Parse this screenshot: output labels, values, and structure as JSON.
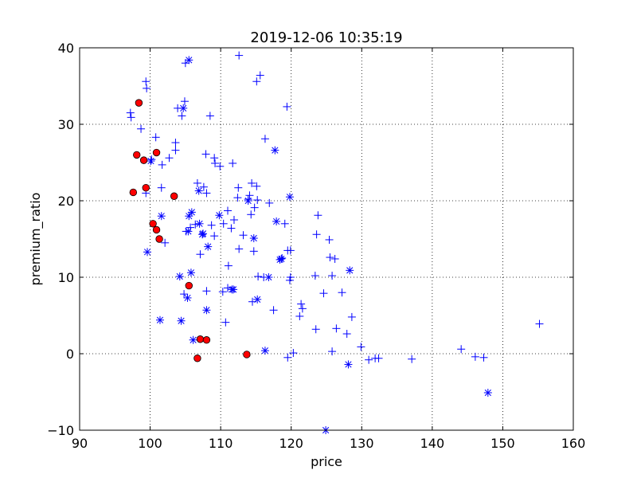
{
  "chart_data": {
    "type": "scatter",
    "title": "2019-12-06 10:35:19",
    "xlabel": "price",
    "ylabel": "premium_ratio",
    "xlim": [
      90,
      160
    ],
    "ylim": [
      -10,
      40
    ],
    "xticks": [
      90,
      100,
      110,
      120,
      130,
      140,
      150,
      160
    ],
    "yticks": [
      -10,
      0,
      10,
      20,
      30,
      40
    ],
    "xtick_labels": [
      "90",
      "100",
      "110",
      "120",
      "130",
      "140",
      "150",
      "160"
    ],
    "ytick_labels": [
      "−10",
      "0",
      "10",
      "20",
      "30",
      "40"
    ],
    "grid": true,
    "legend": "none",
    "colors": {
      "plus": "#0000ff",
      "star": "#0000ff",
      "circle_fill": "#ff0000",
      "circle_edge": "#000000",
      "grid": "#000000",
      "axes": "#000000"
    },
    "series": [
      {
        "marker": "plus",
        "points": [
          [
            97.2,
            31.5
          ],
          [
            97.3,
            30.9
          ],
          [
            98.7,
            29.4
          ],
          [
            99.4,
            35.6
          ],
          [
            99.5,
            34.7
          ],
          [
            99.4,
            21.0
          ],
          [
            100.2,
            25.4
          ],
          [
            100.8,
            28.3
          ],
          [
            101.7,
            24.7
          ],
          [
            101.6,
            21.7
          ],
          [
            102.7,
            25.6
          ],
          [
            102.1,
            14.5
          ],
          [
            103.6,
            27.6
          ],
          [
            103.6,
            26.6
          ],
          [
            103.9,
            32.1
          ],
          [
            104.5,
            31.1
          ],
          [
            104.9,
            33.0
          ],
          [
            105.0,
            38.0
          ],
          [
            105.7,
            16.5
          ],
          [
            105.1,
            16.0
          ],
          [
            104.8,
            7.8
          ],
          [
            106.4,
            16.9
          ],
          [
            106.7,
            22.3
          ],
          [
            107.6,
            21.8
          ],
          [
            107.9,
            26.1
          ],
          [
            108.0,
            21.0
          ],
          [
            108.5,
            31.1
          ],
          [
            108.7,
            16.8
          ],
          [
            109.1,
            25.6
          ],
          [
            109.2,
            24.9
          ],
          [
            109.1,
            15.4
          ],
          [
            108.0,
            8.2
          ],
          [
            107.1,
            13.0
          ],
          [
            109.9,
            24.5
          ],
          [
            110.3,
            8.1
          ],
          [
            110.4,
            17.0
          ],
          [
            110.7,
            4.1
          ],
          [
            111.0,
            18.7
          ],
          [
            111.1,
            11.5
          ],
          [
            111.0,
            8.6
          ],
          [
            111.5,
            16.4
          ],
          [
            111.7,
            24.9
          ],
          [
            111.9,
            17.5
          ],
          [
            112.5,
            21.7
          ],
          [
            112.4,
            20.4
          ],
          [
            112.6,
            13.7
          ],
          [
            112.6,
            39.0
          ],
          [
            113.2,
            15.5
          ],
          [
            113.9,
            20.2
          ],
          [
            114.1,
            20.7
          ],
          [
            114.3,
            18.2
          ],
          [
            114.4,
            22.3
          ],
          [
            114.8,
            19.1
          ],
          [
            114.7,
            13.4
          ],
          [
            114.5,
            6.8
          ],
          [
            115.1,
            35.6
          ],
          [
            115.1,
            21.9
          ],
          [
            115.2,
            20.1
          ],
          [
            115.6,
            36.4
          ],
          [
            115.3,
            10.1
          ],
          [
            116.1,
            10.0
          ],
          [
            116.3,
            28.1
          ],
          [
            116.9,
            19.7
          ],
          [
            117.5,
            5.7
          ],
          [
            118.7,
            12.5
          ],
          [
            119.1,
            17.0
          ],
          [
            119.4,
            32.3
          ],
          [
            119.5,
            13.5
          ],
          [
            119.9,
            13.5
          ],
          [
            119.8,
            9.6
          ],
          [
            119.9,
            10.0
          ],
          [
            119.5,
            -0.5
          ],
          [
            120.3,
            0.1
          ],
          [
            121.2,
            4.9
          ],
          [
            121.4,
            6.5
          ],
          [
            121.6,
            5.9
          ],
          [
            123.4,
            10.2
          ],
          [
            123.5,
            3.2
          ],
          [
            123.6,
            15.6
          ],
          [
            123.8,
            18.1
          ],
          [
            124.6,
            7.9
          ],
          [
            125.4,
            14.9
          ],
          [
            125.5,
            12.6
          ],
          [
            125.8,
            10.2
          ],
          [
            125.8,
            0.3
          ],
          [
            126.2,
            12.4
          ],
          [
            126.4,
            3.3
          ],
          [
            127.2,
            8.0
          ],
          [
            127.9,
            2.6
          ],
          [
            128.6,
            4.8
          ],
          [
            129.9,
            0.9
          ],
          [
            131.0,
            -0.8
          ],
          [
            131.9,
            -0.6
          ],
          [
            132.4,
            -0.6
          ],
          [
            137.1,
            -0.7
          ],
          [
            144.1,
            0.6
          ],
          [
            146.1,
            -0.4
          ],
          [
            147.3,
            -0.5
          ],
          [
            155.2,
            3.9
          ]
        ]
      },
      {
        "marker": "star",
        "points": [
          [
            105.5,
            38.4
          ],
          [
            104.7,
            32.1
          ],
          [
            100.1,
            25.2
          ],
          [
            101.6,
            18.0
          ],
          [
            99.6,
            13.3
          ],
          [
            101.4,
            4.4
          ],
          [
            104.2,
            10.1
          ],
          [
            104.4,
            4.3
          ],
          [
            105.5,
            18.0
          ],
          [
            105.4,
            16.0
          ],
          [
            105.9,
            18.5
          ],
          [
            105.8,
            10.6
          ],
          [
            105.3,
            7.3
          ],
          [
            106.1,
            1.8
          ],
          [
            106.9,
            21.3
          ],
          [
            107.0,
            17.0
          ],
          [
            107.4,
            15.6
          ],
          [
            107.5,
            15.7
          ],
          [
            108.0,
            5.7
          ],
          [
            108.2,
            14.0
          ],
          [
            109.8,
            18.1
          ],
          [
            111.6,
            8.4
          ],
          [
            111.8,
            8.4
          ],
          [
            113.9,
            20.0
          ],
          [
            114.7,
            15.1
          ],
          [
            115.2,
            7.1
          ],
          [
            116.3,
            0.4
          ],
          [
            116.8,
            10.0
          ],
          [
            117.7,
            26.6
          ],
          [
            117.9,
            17.3
          ],
          [
            118.4,
            12.3
          ],
          [
            118.6,
            12.4
          ],
          [
            119.8,
            20.5
          ],
          [
            124.9,
            -10.0
          ],
          [
            128.1,
            -1.4
          ],
          [
            128.3,
            10.9
          ],
          [
            147.9,
            -5.1
          ]
        ]
      },
      {
        "marker": "circle",
        "points": [
          [
            98.4,
            32.8
          ],
          [
            98.1,
            26.0
          ],
          [
            99.1,
            25.3
          ],
          [
            97.6,
            21.1
          ],
          [
            99.4,
            21.7
          ],
          [
            100.9,
            26.3
          ],
          [
            100.4,
            17.0
          ],
          [
            100.9,
            16.2
          ],
          [
            101.3,
            15.0
          ],
          [
            103.4,
            20.6
          ],
          [
            105.5,
            8.9
          ],
          [
            106.7,
            -0.6
          ],
          [
            107.1,
            1.9
          ],
          [
            108.0,
            1.8
          ],
          [
            113.7,
            -0.1
          ]
        ]
      }
    ]
  }
}
